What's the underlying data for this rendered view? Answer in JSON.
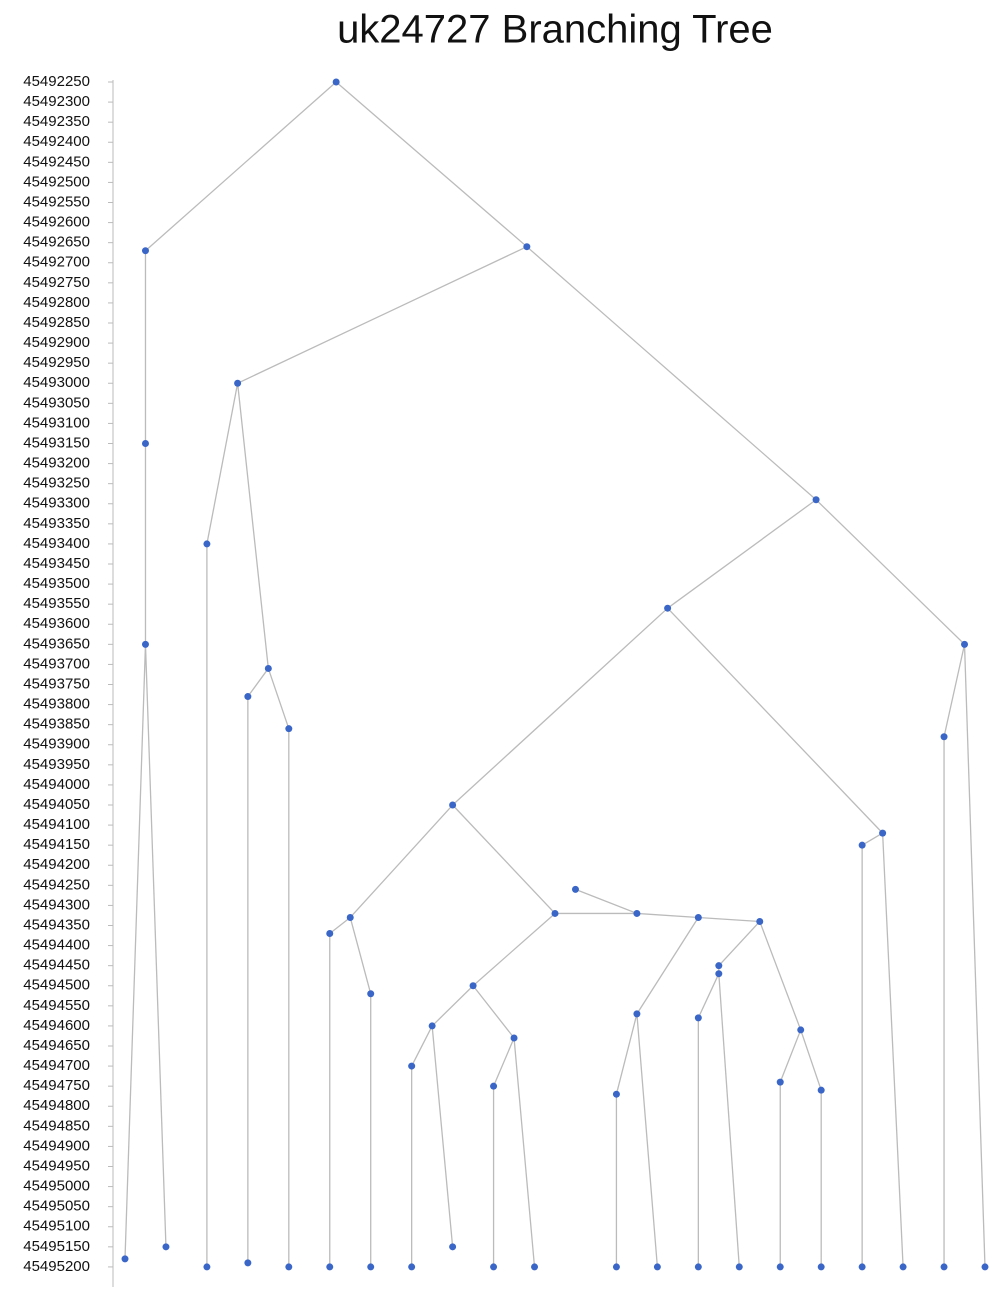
{
  "chart_data": {
    "type": "tree",
    "title": "uk24727 Branching Tree",
    "ylim": [
      45492245,
      45495250
    ],
    "yticks": [
      45492250,
      45492300,
      45492350,
      45492400,
      45492450,
      45492500,
      45492550,
      45492600,
      45492650,
      45492700,
      45492750,
      45492800,
      45492850,
      45492900,
      45492950,
      45493000,
      45493050,
      45493100,
      45493150,
      45493200,
      45493250,
      45493300,
      45493350,
      45493400,
      45493450,
      45493500,
      45493550,
      45493600,
      45493650,
      45493700,
      45493750,
      45493800,
      45493850,
      45493900,
      45493950,
      45494000,
      45494050,
      45494100,
      45494150,
      45494200,
      45494250,
      45494300,
      45494350,
      45494400,
      45494450,
      45494500,
      45494550,
      45494600,
      45494650,
      45494700,
      45494750,
      45494800,
      45494850,
      45494900,
      45494950,
      45495000,
      45495050,
      45495100,
      45495150,
      45495200
    ],
    "node_color": "#3a66c8",
    "edge_color": "#bbbbbb",
    "nodes": [
      {
        "y": 45492250
      },
      {
        "y": 45492670,
        "parent": 0
      },
      {
        "y": 45493150,
        "parent": 1
      },
      {
        "y": 45493650,
        "parent": 2
      },
      {
        "y": 45495180,
        "parent": 3
      },
      {
        "y": 45495150,
        "parent": 3
      },
      {
        "y": 45492660,
        "parent": 0
      },
      {
        "y": 45493000,
        "parent": 6
      },
      {
        "y": 45493400,
        "parent": 7
      },
      {
        "y": 45495200,
        "parent": 8
      },
      {
        "y": 45493710,
        "parent": 7
      },
      {
        "y": 45493780,
        "parent": 10
      },
      {
        "y": 45495190,
        "parent": 11
      },
      {
        "y": 45493860,
        "parent": 10
      },
      {
        "y": 45495200,
        "parent": 13
      },
      {
        "y": 45493290,
        "parent": 6
      },
      {
        "y": 45493560,
        "parent": 15
      },
      {
        "y": 45494050,
        "parent": 16
      },
      {
        "y": 45494330,
        "parent": 17
      },
      {
        "y": 45494370,
        "parent": 18
      },
      {
        "y": 45495200,
        "parent": 19
      },
      {
        "y": 45494520,
        "parent": 18
      },
      {
        "y": 45495200,
        "parent": 21
      },
      {
        "y": 45494320,
        "parent": 17
      },
      {
        "y": 45494500,
        "parent": 23
      },
      {
        "y": 45494600,
        "parent": 24
      },
      {
        "y": 45494700,
        "parent": 25
      },
      {
        "y": 45495200,
        "parent": 26
      },
      {
        "y": 45495150,
        "parent": 25
      },
      {
        "y": 45494630,
        "parent": 24
      },
      {
        "y": 45494750,
        "parent": 29
      },
      {
        "y": 45495200,
        "parent": 30
      },
      {
        "y": 45495200,
        "parent": 29
      },
      {
        "y": 45494320,
        "parent": 23
      },
      {
        "y": 45494260,
        "parent": 33
      },
      {
        "y": 45494330,
        "parent": 33
      },
      {
        "y": 45494570,
        "parent": 35
      },
      {
        "y": 45494770,
        "parent": 36
      },
      {
        "y": 45495200,
        "parent": 37
      },
      {
        "y": 45495200,
        "parent": 36
      },
      {
        "y": 45494340,
        "parent": 35
      },
      {
        "y": 45494450,
        "parent": 40
      },
      {
        "y": 45494470,
        "parent": 41
      },
      {
        "y": 45494580,
        "parent": 42
      },
      {
        "y": 45495200,
        "parent": 43
      },
      {
        "y": 45495200,
        "parent": 42
      },
      {
        "y": 45494610,
        "parent": 40
      },
      {
        "y": 45494740,
        "parent": 46
      },
      {
        "y": 45495200,
        "parent": 47
      },
      {
        "y": 45494760,
        "parent": 46
      },
      {
        "y": 45495200,
        "parent": 49
      },
      {
        "y": 45494120,
        "parent": 16
      },
      {
        "y": 45494150,
        "parent": 51
      },
      {
        "y": 45495200,
        "parent": 52
      },
      {
        "y": 45495200,
        "parent": 51
      },
      {
        "y": 45493650,
        "parent": 15
      },
      {
        "y": 45493880,
        "parent": 55
      },
      {
        "y": 45495200,
        "parent": 56
      },
      {
        "y": 45495200,
        "parent": 55
      }
    ]
  }
}
